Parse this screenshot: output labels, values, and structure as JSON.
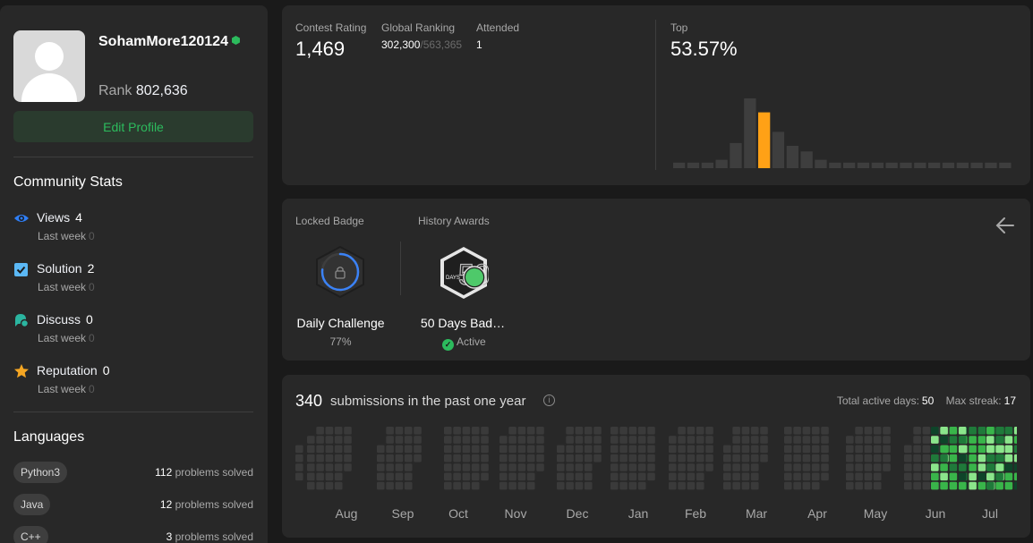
{
  "profile": {
    "username": "SohamMore120124",
    "rank_label": "Rank",
    "rank_value": "802,636",
    "edit_label": "Edit Profile"
  },
  "community": {
    "title": "Community Stats",
    "stats": [
      {
        "label": "Views",
        "value": "4",
        "sub_label": "Last week",
        "sub_value": "0",
        "icon": "eye-icon",
        "color": "#2f7ef5"
      },
      {
        "label": "Solution",
        "value": "2",
        "sub_label": "Last week",
        "sub_value": "0",
        "icon": "solution-icon",
        "color": "#5bb8f5"
      },
      {
        "label": "Discuss",
        "value": "0",
        "sub_label": "Last week",
        "sub_value": "0",
        "icon": "discuss-icon",
        "color": "#2bb5a0"
      },
      {
        "label": "Reputation",
        "value": "0",
        "sub_label": "Last week",
        "sub_value": "0",
        "icon": "star-icon",
        "color": "#f5a623"
      }
    ]
  },
  "languages": {
    "title": "Languages",
    "suffix": "problems solved",
    "items": [
      {
        "name": "Python3",
        "count": "112"
      },
      {
        "name": "Java",
        "count": "12"
      },
      {
        "name": "C++",
        "count": "3"
      }
    ]
  },
  "contest": {
    "rating_label": "Contest Rating",
    "rating_value": "1,469",
    "global_label": "Global Ranking",
    "global_value": "302,300",
    "global_total": "/563,365",
    "attended_label": "Attended",
    "attended_value": "1",
    "top_label": "Top",
    "top_value": "53.57%",
    "histogram": {
      "values": [
        2,
        2,
        2,
        3,
        9,
        25,
        20,
        13,
        8,
        6,
        3,
        2,
        2,
        2,
        2,
        2,
        2,
        2,
        2,
        2,
        2,
        2,
        2,
        2
      ],
      "highlight_index": 6,
      "color": "#3e3e3e",
      "highlight_color": "#ffa116"
    }
  },
  "badges": {
    "locked_label": "Locked Badge",
    "history_label": "History Awards",
    "locked": {
      "title": "Daily Challenge",
      "progress": "77%",
      "progress_fraction": 0.77
    },
    "awarded": {
      "title": "50 Days Bad…",
      "status": "Active",
      "badge_number": "50",
      "badge_text": "DAYS"
    }
  },
  "submissions": {
    "count": "340",
    "text": "submissions in the past one year",
    "active_days_label": "Total active days:",
    "active_days_value": "50",
    "max_streak_label": "Max streak:",
    "max_streak_value": "17",
    "months": [
      "Aug",
      "Sep",
      "Oct",
      "Nov",
      "Dec",
      "Jan",
      "Feb",
      "Mar",
      "Apr",
      "May",
      "Jun",
      "Jul"
    ],
    "colors": {
      "empty": "#3a3a3a",
      "l1": "#0e4429",
      "l2": "#1f7a3a",
      "l3": "#39b54a",
      "l4": "#8be58b"
    }
  }
}
